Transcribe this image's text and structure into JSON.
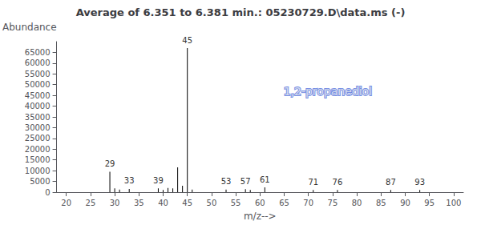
{
  "chart_data": {
    "type": "stem",
    "title": "Average of 6.351 to 6.381 min.: 05230729.D\\data.ms (-)",
    "xlabel": "m/z-->",
    "ylabel": "Abundance",
    "x": [
      29,
      30,
      31,
      33,
      39,
      40,
      41,
      42,
      43,
      44,
      45,
      46,
      53,
      57,
      58,
      61,
      71,
      76,
      87,
      93
    ],
    "values": [
      9500,
      1800,
      1200,
      1500,
      1800,
      1000,
      2000,
      1800,
      11500,
      3000,
      67000,
      1200,
      1200,
      1400,
      1000,
      2200,
      1000,
      1000,
      1000,
      1000
    ],
    "labeled_peaks": [
      29,
      33,
      39,
      45,
      53,
      57,
      61,
      71,
      76,
      87,
      93
    ],
    "annotations": [
      {
        "text": "1,2-propanediol",
        "x": 74,
        "y": 47000
      }
    ],
    "color": "#000000",
    "xlim": [
      18,
      102
    ],
    "ylim": [
      0,
      70000
    ],
    "xticks": [
      20,
      25,
      30,
      35,
      40,
      45,
      50,
      55,
      60,
      65,
      70,
      75,
      80,
      85,
      90,
      95,
      100
    ],
    "yticks": [
      0,
      5000,
      10000,
      15000,
      20000,
      25000,
      30000,
      35000,
      40000,
      45000,
      50000,
      55000,
      60000,
      65000
    ],
    "grid": false
  }
}
